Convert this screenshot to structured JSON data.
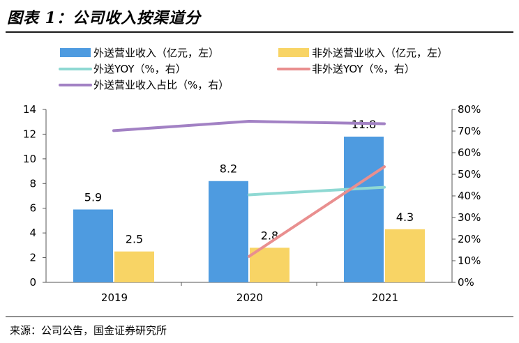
{
  "title": "图表 1：公司收入按渠道分",
  "source": "来源：公司公告，国金证券研究所",
  "chart_data": {
    "type": "bar",
    "categories": [
      "2019",
      "2020",
      "2021"
    ],
    "y_left": {
      "min": 0,
      "max": 14,
      "ticks": [
        0,
        2,
        4,
        6,
        8,
        10,
        12,
        14
      ]
    },
    "y_right": {
      "min": 0,
      "max": 80,
      "ticks": [
        "0%",
        "10%",
        "20%",
        "30%",
        "40%",
        "50%",
        "60%",
        "70%",
        "80%"
      ]
    },
    "series": [
      {
        "name": "外送营业收入（亿元，左）",
        "kind": "bar",
        "axis": "left",
        "color": "#4e9be0",
        "values": [
          5.9,
          8.2,
          11.8
        ],
        "labels": [
          "5.9",
          "8.2",
          "11.8"
        ]
      },
      {
        "name": "非外送营业收入（亿元，左）",
        "kind": "bar",
        "axis": "left",
        "color": "#f8d465",
        "values": [
          2.5,
          2.8,
          4.3
        ],
        "labels": [
          "2.5",
          "2.8",
          "4.3"
        ]
      },
      {
        "name": "外送YOY（%，右）",
        "kind": "line",
        "axis": "right",
        "color": "#8fd9d3",
        "values": [
          null,
          40.5,
          44.0
        ]
      },
      {
        "name": "非外送YOY（%，右）",
        "kind": "line",
        "axis": "right",
        "color": "#e98f8f",
        "values": [
          null,
          12.0,
          53.5
        ]
      },
      {
        "name": "外送营业收入占比（%，右）",
        "kind": "line",
        "axis": "right",
        "color": "#a281c4",
        "values": [
          70.2,
          74.5,
          73.4
        ]
      }
    ]
  }
}
